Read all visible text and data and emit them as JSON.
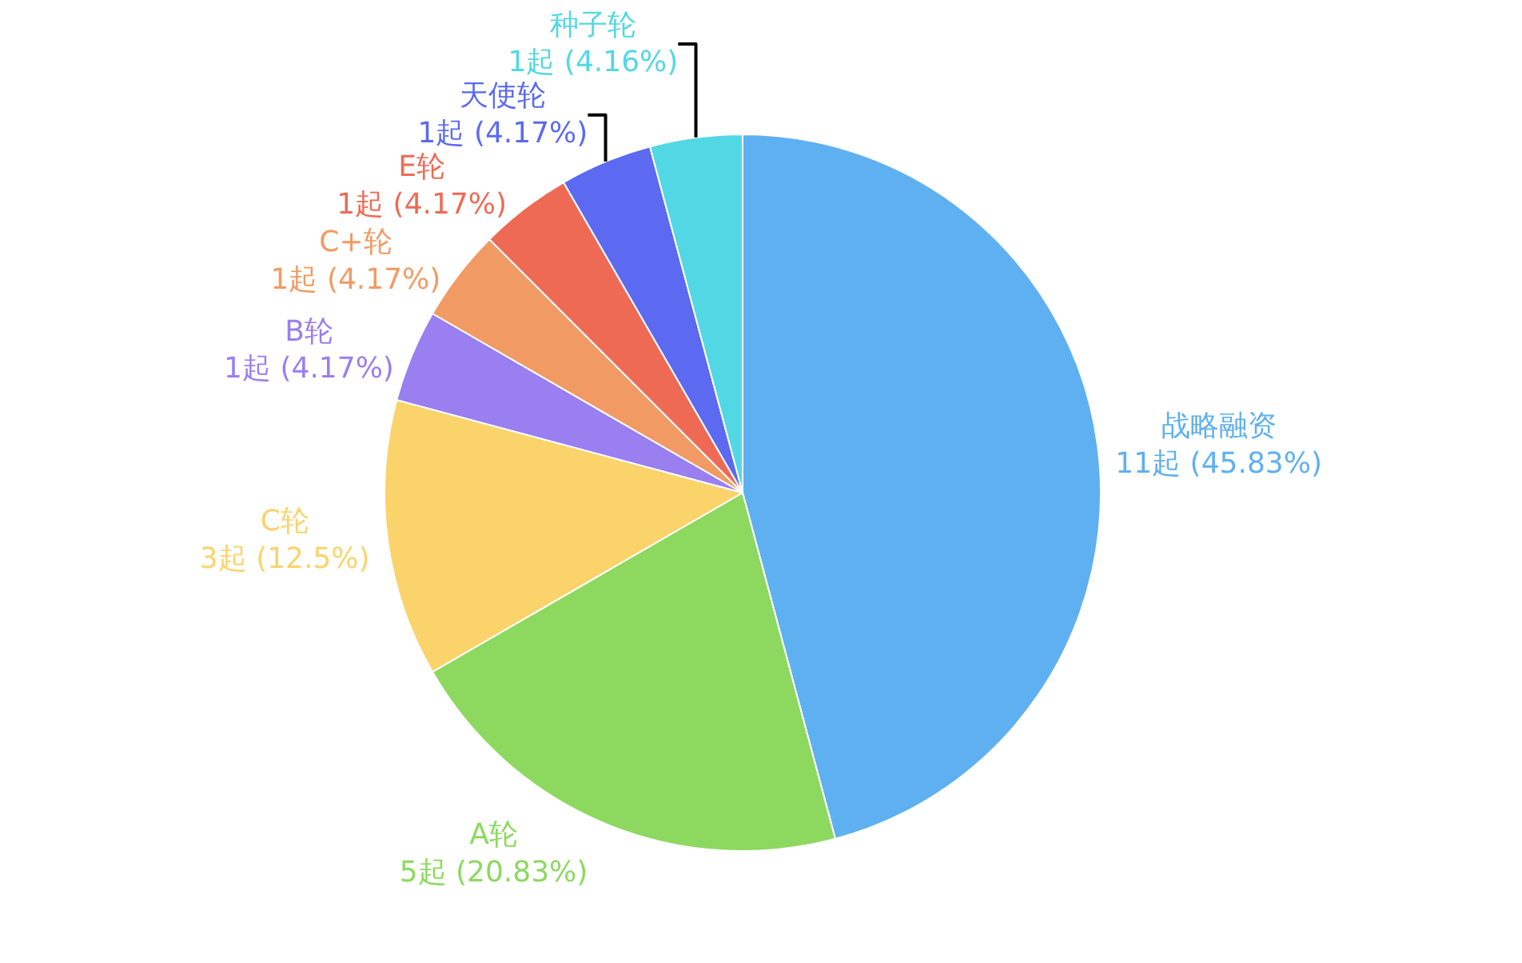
{
  "chart_data": {
    "type": "pie",
    "categories": [
      "战略融资",
      "A轮",
      "C轮",
      "B轮",
      "C+轮",
      "E轮",
      "天使轮",
      "种子轮"
    ],
    "values": [
      11,
      5,
      3,
      1,
      1,
      1,
      1,
      1
    ],
    "value_labels": [
      "11起 (45.83%)",
      "5起 (20.83%)",
      "3起 (12.5%)",
      "1起 (4.17%)",
      "1起 (4.17%)",
      "1起 (4.17%)",
      "1起 (4.17%)",
      "1起 (4.16%)"
    ],
    "colors": [
      "#5fb0f0",
      "#8dd95f",
      "#fbd36b",
      "#9a7ff0",
      "#f29a63",
      "#ee6a55",
      "#5b6af0",
      "#52d8e4"
    ],
    "legend": false
  }
}
